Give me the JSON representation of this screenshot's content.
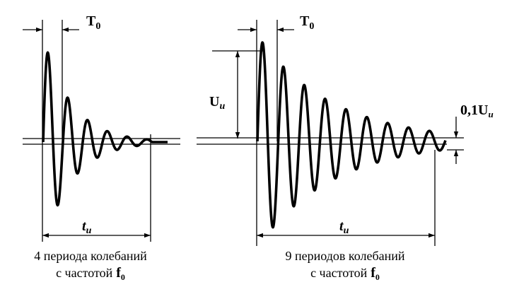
{
  "left": {
    "period_label": {
      "main": "T",
      "sub": "0"
    },
    "duration_label": {
      "main": "t",
      "sub": "и"
    },
    "caption": {
      "line1": "4 периода колебаний",
      "line2": "с частотой",
      "freq": {
        "main": "f",
        "sub": "0"
      }
    }
  },
  "right": {
    "period_label": {
      "main": "T",
      "sub": "0"
    },
    "amplitude_label": {
      "main": "U",
      "sub": "и"
    },
    "threshold_label": {
      "main": "0,1U",
      "sub": "и"
    },
    "duration_label": {
      "main": "t",
      "sub": "и"
    },
    "caption": {
      "line1": "9 периодов колебаний",
      "line2": "с частотой",
      "freq": {
        "main": "f",
        "sub": "0"
      }
    }
  }
}
